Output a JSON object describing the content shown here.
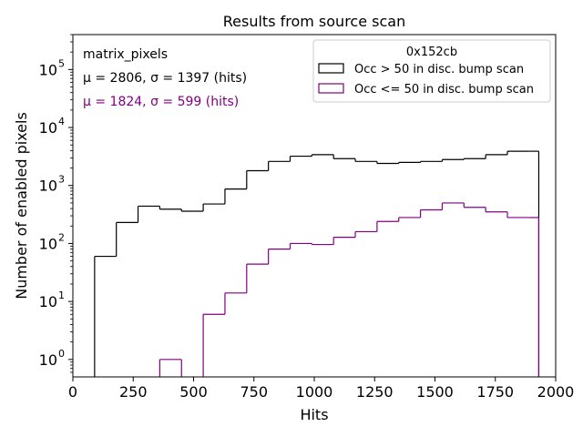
{
  "chart_data": {
    "type": "histogram",
    "title": "Results from source scan",
    "xlabel": "Hits",
    "ylabel": "Number of enabled pixels",
    "xlim": [
      0,
      2000
    ],
    "ylim": [
      0.5,
      400000
    ],
    "yscale": "log",
    "grid": false,
    "x_ticks": [
      0,
      250,
      500,
      750,
      1000,
      1250,
      1500,
      1750,
      2000
    ],
    "x_tick_labels": [
      "0",
      "250",
      "500",
      "750",
      "1000",
      "1250",
      "1500",
      "1750",
      "2000"
    ],
    "y_ticks": [
      1,
      10,
      100,
      1000,
      10000,
      100000
    ],
    "y_tick_labels": [
      {
        "base": "10",
        "exp": "0"
      },
      {
        "base": "10",
        "exp": "1"
      },
      {
        "base": "10",
        "exp": "2"
      },
      {
        "base": "10",
        "exp": "3"
      },
      {
        "base": "10",
        "exp": "4"
      },
      {
        "base": "10",
        "exp": "5"
      }
    ],
    "legend": {
      "title": "0x152cb",
      "position": "top-right",
      "entries": [
        "Occ > 50 in disc. bump scan",
        "Occ <= 50 in disc. bump scan"
      ]
    },
    "annotations": [
      {
        "text": "matrix_pixels",
        "color": "#000000"
      },
      {
        "text": "μ = 2806, σ = 1397 (hits)",
        "color": "#000000"
      },
      {
        "text": "μ = 1824, σ = 599 (hits)",
        "color": "#800080"
      }
    ],
    "bin_edges": [
      90,
      180,
      270,
      360,
      450,
      540,
      630,
      720,
      810,
      900,
      990,
      1080,
      1170,
      1260,
      1350,
      1440,
      1530,
      1620,
      1710,
      1800,
      1890,
      1930
    ],
    "series": [
      {
        "name": "Occ > 50 in disc. bump scan",
        "color": "#000000",
        "values": [
          60,
          230,
          440,
          390,
          360,
          480,
          870,
          1800,
          2600,
          3200,
          3400,
          2900,
          2600,
          2400,
          2500,
          2600,
          2800,
          2900,
          3400,
          3900,
          3900
        ]
      },
      {
        "name": "Occ <= 50 in disc. bump scan",
        "color": "#800080",
        "values": [
          0,
          0,
          0,
          1,
          0,
          6,
          14,
          44,
          80,
          100,
          96,
          128,
          160,
          240,
          280,
          380,
          500,
          420,
          350,
          280,
          280
        ]
      }
    ]
  }
}
